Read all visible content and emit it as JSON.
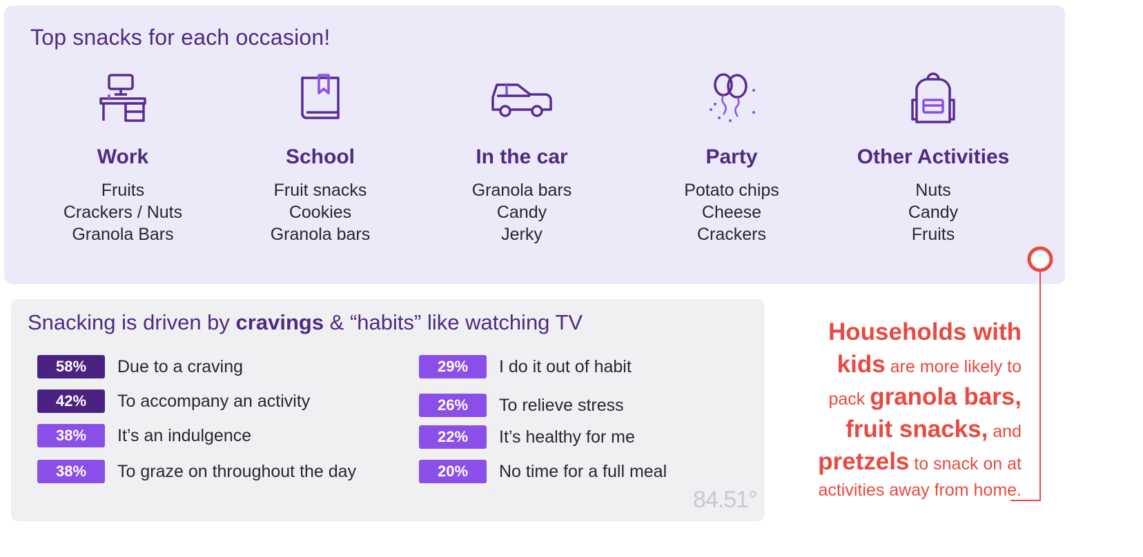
{
  "top": {
    "title": "Top snacks for each occasion!",
    "occasions": [
      {
        "name": "Work",
        "icon": "desk-icon",
        "snacks": [
          "Fruits",
          "Crackers / Nuts",
          "Granola Bars"
        ]
      },
      {
        "name": "School",
        "icon": "book-icon",
        "snacks": [
          "Fruit snacks",
          "Cookies",
          "Granola bars"
        ]
      },
      {
        "name": "In the car",
        "icon": "car-icon",
        "snacks": [
          "Granola bars",
          "Candy",
          "Jerky"
        ]
      },
      {
        "name": "Party",
        "icon": "balloons-icon",
        "snacks": [
          "Potato chips",
          "Cheese",
          "Crackers"
        ]
      },
      {
        "name": "Other Activities",
        "icon": "backpack-icon",
        "snacks": [
          "Nuts",
          "Candy",
          "Fruits"
        ]
      }
    ]
  },
  "bottom": {
    "title_part1": "Snacking is driven by ",
    "title_bold": "cravings",
    "title_part2": " & “habits” like watching TV",
    "logo": "84.51°"
  },
  "chart_data": {
    "type": "bar",
    "title": "Snacking is driven by cravings & “habits” like watching TV",
    "unit": "%",
    "categories": [
      "Due to a craving",
      "To accompany an activity",
      "It’s an indulgence",
      "To graze on throughout the day",
      "I do it out of habit",
      "To relieve stress",
      "It’s healthy for me",
      "No time for a full meal"
    ],
    "values": [
      58,
      42,
      38,
      38,
      29,
      26,
      22,
      20
    ],
    "labels": [
      "58%",
      "42%",
      "38%",
      "38%",
      "29%",
      "26%",
      "22%",
      "20%"
    ]
  },
  "colors": {
    "dark_purple": "#4a2382",
    "light_purple": "#8a4fe8",
    "title_purple": "#4f2a83",
    "accent_red": "#e9493f",
    "panel_lavender": "#ece9f8",
    "panel_gray": "#f0f0f2"
  },
  "callout": {
    "big1": "Households with",
    "big2": "kids",
    "small1": " are more likely to",
    "small2": "pack ",
    "big3": "granola bars,",
    "big4": "fruit snacks,",
    "small3": " and",
    "big5": "pretzels",
    "small4": " to snack on at",
    "small5": "activities away from home."
  }
}
